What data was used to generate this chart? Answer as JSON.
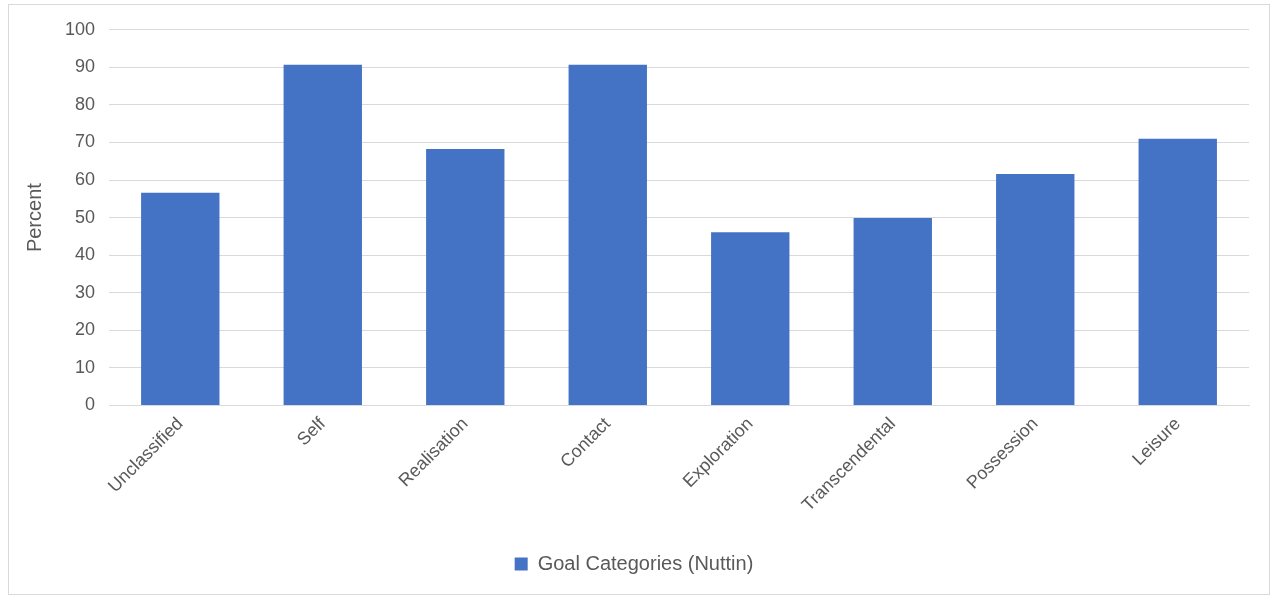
{
  "chart_data": {
    "type": "bar",
    "ylabel": "Percent",
    "categories": [
      "Unclassified",
      "Self",
      "Realisation",
      "Contact",
      "Exploration",
      "Transcendental",
      "Possession",
      "Leisure"
    ],
    "series": [
      {
        "name": "Goal Categories (Nuttin)",
        "color": "#4472c4",
        "values": [
          56.6,
          90.7,
          68.3,
          90.7,
          46.1,
          49.9,
          61.6,
          71
        ]
      }
    ],
    "ylim": [
      0,
      100
    ],
    "yticks": [
      0,
      10,
      20,
      30,
      40,
      50,
      60,
      70,
      80,
      90,
      100
    ],
    "grid": "y",
    "legend": "bottom"
  }
}
